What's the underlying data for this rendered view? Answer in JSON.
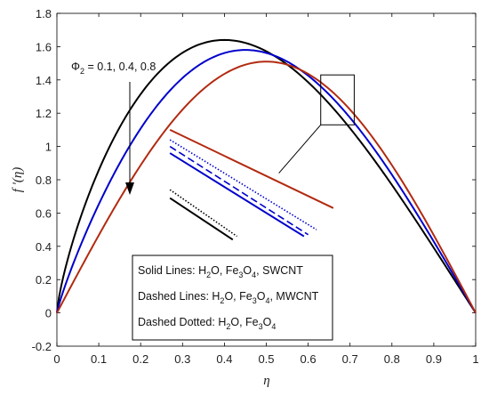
{
  "chart_data": {
    "type": "line",
    "xlabel": "η",
    "ylabel": "f '(η)",
    "xlim": [
      0,
      1
    ],
    "ylim": [
      -0.2,
      1.8
    ],
    "x_ticks": [
      "0",
      "0.1",
      "0.2",
      "0.3",
      "0.4",
      "0.5",
      "0.6",
      "0.7",
      "0.8",
      "0.9",
      "1"
    ],
    "y_ticks": [
      "-0.2",
      "0",
      "0.2",
      "0.4",
      "0.6",
      "0.8",
      "1",
      "1.2",
      "1.4",
      "1.6",
      "1.8"
    ],
    "annotation": {
      "phi_symbol": "Φ",
      "phi_sub": "2",
      "phi_values": " = 0.1, 0.4, 0.8"
    },
    "legend": {
      "lines": [
        {
          "prefix": "Solid Lines: H",
          "sub1": "2",
          "mid": "O, Fe",
          "sub2": "3",
          "mid2": "O",
          "sub3": "4",
          "suffix": ", SWCNT"
        },
        {
          "prefix": "Dashed Lines: H",
          "sub1": "2",
          "mid": "O, Fe",
          "sub2": "3",
          "mid2": "O",
          "sub3": "4",
          "suffix": ", MWCNT"
        },
        {
          "prefix": "Dashed Dotted: H",
          "sub1": "2",
          "mid": "O, Fe",
          "sub2": "3",
          "mid2": "O",
          "sub3": "4",
          "suffix": ""
        }
      ]
    },
    "series": [
      {
        "color": "#000000",
        "peak_x": 0.4,
        "peak_y": 1.64
      },
      {
        "color": "#0000cc",
        "peak_x": 0.45,
        "peak_y": 1.58
      },
      {
        "color": "#b22a10",
        "peak_x": 0.5,
        "peak_y": 1.51
      }
    ],
    "zoom_box": {
      "x": [
        0.63,
        0.71
      ],
      "y": [
        1.13,
        1.43
      ]
    },
    "inset_lines": [
      {
        "color": "#b22a10",
        "style": "solid",
        "x": [
          0.27,
          0.66
        ],
        "y": [
          1.1,
          0.63
        ]
      },
      {
        "color": "#0000cc",
        "style": "dotted",
        "x": [
          0.27,
          0.62
        ],
        "y": [
          1.04,
          0.5
        ]
      },
      {
        "color": "#0000cc",
        "style": "dashed",
        "x": [
          0.27,
          0.6
        ],
        "y": [
          1.0,
          0.47
        ]
      },
      {
        "color": "#0000cc",
        "style": "solid",
        "x": [
          0.27,
          0.59
        ],
        "y": [
          0.96,
          0.46
        ]
      },
      {
        "color": "#000000",
        "style": "dotted",
        "x": [
          0.27,
          0.43
        ],
        "y": [
          0.74,
          0.46
        ]
      },
      {
        "color": "#000000",
        "style": "solid",
        "x": [
          0.27,
          0.42
        ],
        "y": [
          0.69,
          0.44
        ]
      }
    ]
  }
}
